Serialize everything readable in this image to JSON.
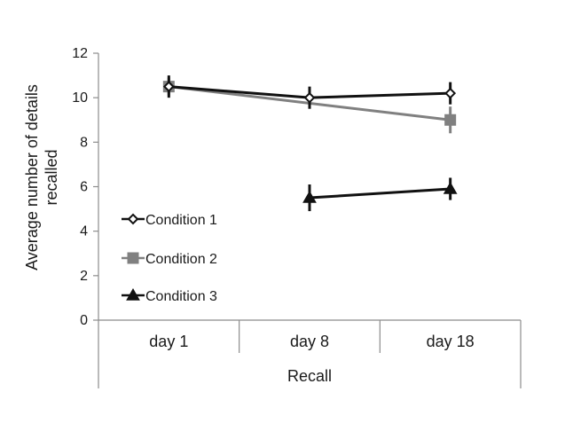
{
  "chart_data": {
    "type": "line",
    "categories": [
      "day 1",
      "day 8",
      "day 18"
    ],
    "series": [
      {
        "name": "Condition 1",
        "values": [
          10.5,
          10.0,
          10.2
        ],
        "errors": [
          0.5,
          0.5,
          0.5
        ],
        "color": "#111111",
        "marker": "diamond-open"
      },
      {
        "name": "Condition 2",
        "values": [
          10.5,
          null,
          9.0
        ],
        "errors": [
          0.4,
          null,
          0.6
        ],
        "color": "#808080",
        "marker": "square"
      },
      {
        "name": "Condition 3",
        "values": [
          null,
          5.5,
          5.9
        ],
        "errors": [
          null,
          0.6,
          0.5
        ],
        "color": "#111111",
        "marker": "triangle"
      }
    ],
    "xlabel": "Recall",
    "ylabel": "Average number of details recalled",
    "ylabel_lines": [
      "Average number of details",
      "recalled"
    ],
    "ylim": [
      0,
      12
    ],
    "yticks": [
      "0",
      "2",
      "4",
      "6",
      "8",
      "10",
      "12"
    ],
    "grid": false,
    "legend_position": "left"
  }
}
